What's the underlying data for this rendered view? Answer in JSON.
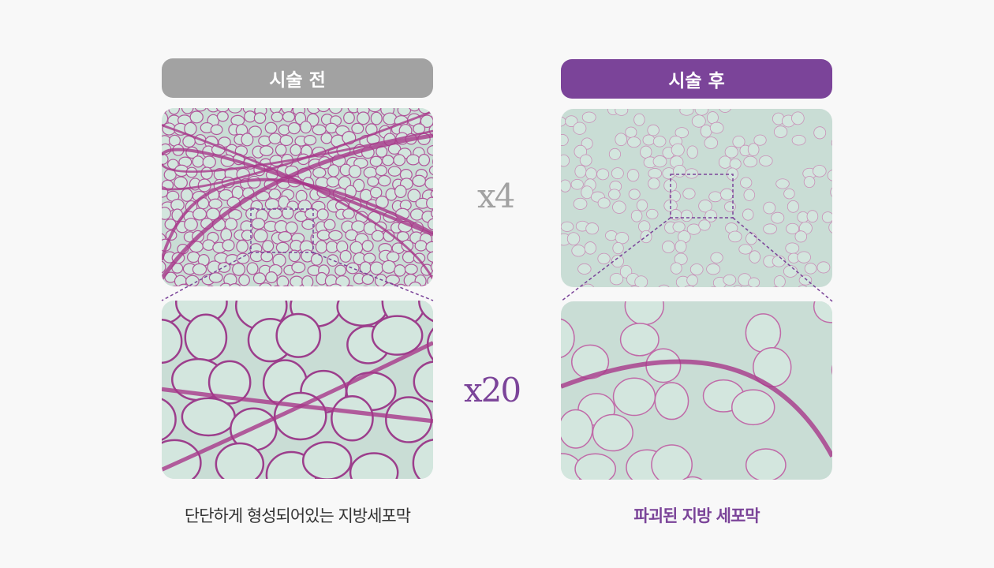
{
  "before": {
    "label": "시술 전",
    "caption": "단단하게 형성되어있는 지방세포막",
    "color": "#a2a2a2"
  },
  "after": {
    "label": "시술 후",
    "caption": "파괴된 지방 세포막",
    "color": "#7b4499"
  },
  "magnification": {
    "low": "x4",
    "high": "x20"
  },
  "colors": {
    "tissue_bg": "#c9ddd5",
    "stain": "#b0478f",
    "accent": "#7b4499",
    "muted": "#a2a2a2"
  }
}
